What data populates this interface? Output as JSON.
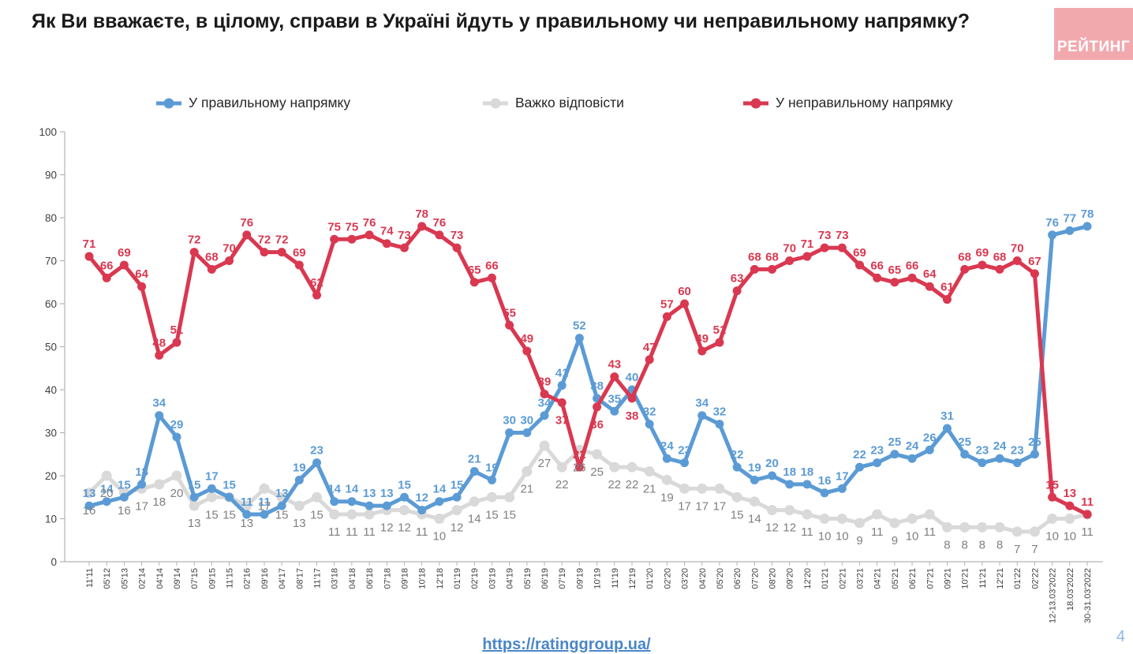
{
  "title": "Як Ви вважаєте, в цілому, справи в Україні йдуть у правильному чи неправильному напрямку?",
  "logo": {
    "text": "РЕЙТИНГ",
    "bg_color": "#f2a9ae"
  },
  "footer": {
    "url": "https://ratinggroup.ua/",
    "page_number": "4"
  },
  "chart_data": {
    "type": "line",
    "title": "Як Ви вважаєте, в цілому, справи в Україні йдуть у правильному чи неправильному напрямку?",
    "xlabel": "",
    "ylabel": "",
    "ylim": [
      0,
      100
    ],
    "yticks": [
      0,
      10,
      20,
      30,
      40,
      50,
      60,
      70,
      80,
      90,
      100
    ],
    "grid": false,
    "legend_position": "top",
    "categories": [
      "11'11",
      "05'12",
      "05'13",
      "02'14",
      "04'14",
      "09'14",
      "07'15",
      "09'15",
      "11'15",
      "02'16",
      "09'16",
      "04'17",
      "08'17",
      "11'17",
      "03'18",
      "04'18",
      "06'18",
      "07'18",
      "09'18",
      "10'18",
      "12'18",
      "01'19",
      "02'19",
      "03'19",
      "04'19",
      "05'19",
      "06'19",
      "07'19",
      "09'19",
      "10'19",
      "11'19",
      "12'19",
      "01'20",
      "02'20",
      "03'20",
      "04'20",
      "05'20",
      "06'20",
      "07'20",
      "08'20",
      "09'20",
      "12'20",
      "01'21",
      "02'21",
      "03'21",
      "04'21",
      "05'21",
      "06'21",
      "07'21",
      "09'21",
      "10'21",
      "11'21",
      "12'21",
      "01'22",
      "02'22",
      "12-13.03'2022",
      "18.03'2022",
      "30-31.03'2022"
    ],
    "series": [
      {
        "key": "right-direction",
        "name": "У правильному напрямку",
        "color": "#5b9bd5",
        "label_color": "#5b9bd5",
        "values": [
          13,
          14,
          15,
          18,
          34,
          29,
          15,
          17,
          15,
          11,
          11,
          13,
          19,
          23,
          14,
          14,
          13,
          13,
          15,
          12,
          14,
          15,
          21,
          19,
          30,
          30,
          34,
          41,
          52,
          38,
          35,
          40,
          32,
          24,
          23,
          34,
          32,
          22,
          19,
          20,
          18,
          18,
          16,
          17,
          22,
          23,
          25,
          24,
          26,
          31,
          25,
          23,
          24,
          23,
          25,
          76,
          77,
          78
        ]
      },
      {
        "key": "hard-to-say",
        "name": "Важко відповісти",
        "color": "#d9d9d9",
        "label_color": "#7f7f7f",
        "values": [
          16,
          20,
          16,
          17,
          18,
          20,
          13,
          15,
          15,
          13,
          17,
          15,
          13,
          15,
          11,
          11,
          11,
          12,
          12,
          11,
          10,
          12,
          14,
          15,
          15,
          21,
          27,
          22,
          26,
          25,
          22,
          22,
          21,
          19,
          17,
          17,
          17,
          15,
          14,
          12,
          12,
          11,
          10,
          10,
          9,
          11,
          9,
          10,
          11,
          8,
          8,
          8,
          8,
          7,
          7,
          10,
          10,
          11
        ]
      },
      {
        "key": "wrong-direction",
        "name": "У неправильному напрямку",
        "color": "#d93850",
        "label_color": "#d93850",
        "values": [
          71,
          66,
          69,
          64,
          48,
          51,
          72,
          68,
          70,
          76,
          72,
          72,
          69,
          62,
          75,
          75,
          76,
          74,
          73,
          78,
          76,
          73,
          65,
          66,
          55,
          49,
          39,
          37,
          22,
          36,
          43,
          38,
          47,
          57,
          60,
          49,
          51,
          63,
          68,
          68,
          70,
          71,
          73,
          73,
          69,
          66,
          65,
          66,
          64,
          61,
          68,
          69,
          68,
          70,
          67,
          15,
          13,
          11
        ]
      }
    ]
  }
}
